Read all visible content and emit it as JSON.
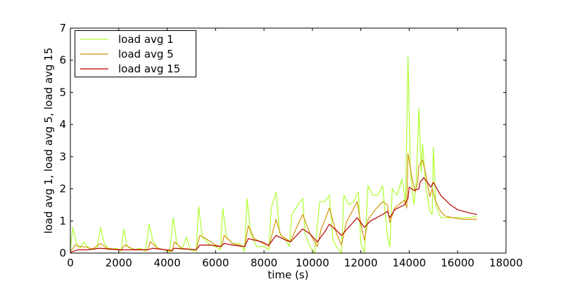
{
  "chart_data": {
    "type": "line",
    "title": "",
    "xlabel": "time (s)",
    "ylabel": "load avg 1, load avg 5, load avg 15",
    "xlim": [
      0,
      18000
    ],
    "ylim": [
      0,
      7
    ],
    "xticks": [
      "0",
      "2000",
      "4000",
      "6000",
      "8000",
      "10000",
      "12000",
      "14000",
      "16000",
      "18000"
    ],
    "yticks": [
      "0",
      "1",
      "2",
      "3",
      "4",
      "5",
      "6",
      "7"
    ],
    "grid": false,
    "legend_position": "top-left",
    "series": [
      {
        "name": "load avg 1",
        "color": "#adff2f",
        "points": [
          [
            0,
            0.1
          ],
          [
            100,
            0.8
          ],
          [
            250,
            0.3
          ],
          [
            400,
            0.15
          ],
          [
            550,
            0.35
          ],
          [
            700,
            0.2
          ],
          [
            900,
            0.1
          ],
          [
            1100,
            0.15
          ],
          [
            1250,
            0.8
          ],
          [
            1400,
            0.3
          ],
          [
            1600,
            0.1
          ],
          [
            1900,
            0.15
          ],
          [
            2100,
            0.05
          ],
          [
            2200,
            0.75
          ],
          [
            2350,
            0.2
          ],
          [
            2600,
            0.1
          ],
          [
            2900,
            0.15
          ],
          [
            3100,
            0.05
          ],
          [
            3250,
            0.9
          ],
          [
            3400,
            0.4
          ],
          [
            3600,
            0.15
          ],
          [
            3900,
            0.1
          ],
          [
            4100,
            0.02
          ],
          [
            4250,
            1.1
          ],
          [
            4400,
            0.3
          ],
          [
            4600,
            0.1
          ],
          [
            4800,
            0.5
          ],
          [
            4950,
            0.1
          ],
          [
            5200,
            0.05
          ],
          [
            5300,
            1.45
          ],
          [
            5450,
            0.5
          ],
          [
            5700,
            0.3
          ],
          [
            6000,
            0.2
          ],
          [
            6200,
            0.1
          ],
          [
            6300,
            1.4
          ],
          [
            6450,
            0.5
          ],
          [
            6700,
            0.3
          ],
          [
            7000,
            0.3
          ],
          [
            7200,
            0.05
          ],
          [
            7300,
            1.7
          ],
          [
            7450,
            0.6
          ],
          [
            7700,
            0.2
          ],
          [
            8000,
            0.2
          ],
          [
            8200,
            0.1
          ],
          [
            8300,
            1.4
          ],
          [
            8500,
            1.9
          ],
          [
            8650,
            0.6
          ],
          [
            8900,
            0.4
          ],
          [
            9050,
            0.2
          ],
          [
            9150,
            1.2
          ],
          [
            9400,
            1.5
          ],
          [
            9600,
            1.7
          ],
          [
            9700,
            0.6
          ],
          [
            9900,
            0.2
          ],
          [
            10100,
            0.0
          ],
          [
            10300,
            1.6
          ],
          [
            10500,
            1.6
          ],
          [
            10700,
            1.8
          ],
          [
            10850,
            0.4
          ],
          [
            11000,
            0.2
          ],
          [
            11200,
            0.0
          ],
          [
            11300,
            1.8
          ],
          [
            11500,
            1.5
          ],
          [
            11700,
            1.6
          ],
          [
            11900,
            1.9
          ],
          [
            12000,
            0.3
          ],
          [
            12150,
            0.0
          ],
          [
            12300,
            2.1
          ],
          [
            12500,
            1.8
          ],
          [
            12700,
            1.8
          ],
          [
            12900,
            2.1
          ],
          [
            13100,
            0.5
          ],
          [
            13200,
            0.2
          ],
          [
            13300,
            2.0
          ],
          [
            13500,
            1.8
          ],
          [
            13700,
            2.3
          ],
          [
            13850,
            1.6
          ],
          [
            13950,
            6.1
          ],
          [
            14050,
            2.5
          ],
          [
            14200,
            1.5
          ],
          [
            14300,
            2.3
          ],
          [
            14400,
            4.5
          ],
          [
            14500,
            2.5
          ],
          [
            14550,
            3.4
          ],
          [
            14700,
            2.0
          ],
          [
            14850,
            1.3
          ],
          [
            14950,
            1.2
          ],
          [
            15000,
            3.3
          ],
          [
            15100,
            1.5
          ],
          [
            15300,
            1.1
          ],
          [
            15600,
            1.1
          ],
          [
            15900,
            1.1
          ],
          [
            16200,
            1.1
          ],
          [
            16500,
            1.1
          ],
          [
            16800,
            1.15
          ]
        ]
      },
      {
        "name": "load avg 5",
        "color": "#d4950a",
        "points": [
          [
            0,
            0.05
          ],
          [
            200,
            0.25
          ],
          [
            400,
            0.2
          ],
          [
            600,
            0.2
          ],
          [
            900,
            0.12
          ],
          [
            1250,
            0.3
          ],
          [
            1500,
            0.15
          ],
          [
            2100,
            0.1
          ],
          [
            2250,
            0.25
          ],
          [
            2600,
            0.12
          ],
          [
            3200,
            0.1
          ],
          [
            3300,
            0.35
          ],
          [
            3600,
            0.15
          ],
          [
            4200,
            0.05
          ],
          [
            4300,
            0.35
          ],
          [
            4600,
            0.15
          ],
          [
            5200,
            0.1
          ],
          [
            5350,
            0.55
          ],
          [
            5600,
            0.45
          ],
          [
            6000,
            0.25
          ],
          [
            6250,
            0.2
          ],
          [
            6350,
            0.55
          ],
          [
            6700,
            0.3
          ],
          [
            7200,
            0.2
          ],
          [
            7350,
            0.85
          ],
          [
            7600,
            0.45
          ],
          [
            8200,
            0.2
          ],
          [
            8500,
            1.05
          ],
          [
            8700,
            0.55
          ],
          [
            9100,
            0.35
          ],
          [
            9200,
            0.55
          ],
          [
            9600,
            1.2
          ],
          [
            9900,
            0.6
          ],
          [
            10200,
            0.2
          ],
          [
            10350,
            0.7
          ],
          [
            10700,
            1.4
          ],
          [
            11000,
            0.6
          ],
          [
            11200,
            0.25
          ],
          [
            11400,
            0.95
          ],
          [
            11850,
            1.6
          ],
          [
            12000,
            0.9
          ],
          [
            12150,
            0.4
          ],
          [
            12300,
            1.05
          ],
          [
            12600,
            1.35
          ],
          [
            12900,
            1.6
          ],
          [
            13100,
            1.5
          ],
          [
            13200,
            0.95
          ],
          [
            13400,
            1.4
          ],
          [
            13800,
            1.65
          ],
          [
            13900,
            1.4
          ],
          [
            13950,
            3.1
          ],
          [
            14100,
            2.4
          ],
          [
            14250,
            1.9
          ],
          [
            14350,
            2.2
          ],
          [
            14400,
            2.7
          ],
          [
            14550,
            2.9
          ],
          [
            14700,
            2.4
          ],
          [
            14850,
            1.75
          ],
          [
            14950,
            2.0
          ],
          [
            15100,
            1.6
          ],
          [
            15300,
            1.3
          ],
          [
            15500,
            1.15
          ],
          [
            15800,
            1.1
          ],
          [
            16200,
            1.05
          ],
          [
            16800,
            1.05
          ]
        ]
      },
      {
        "name": "load avg 15",
        "color": "#b50000",
        "points": [
          [
            0,
            0.02
          ],
          [
            300,
            0.1
          ],
          [
            700,
            0.1
          ],
          [
            1200,
            0.15
          ],
          [
            2000,
            0.1
          ],
          [
            2300,
            0.1
          ],
          [
            3200,
            0.1
          ],
          [
            3400,
            0.15
          ],
          [
            4200,
            0.08
          ],
          [
            4300,
            0.15
          ],
          [
            5200,
            0.1
          ],
          [
            5350,
            0.25
          ],
          [
            5800,
            0.25
          ],
          [
            6200,
            0.2
          ],
          [
            6350,
            0.3
          ],
          [
            6700,
            0.25
          ],
          [
            7200,
            0.2
          ],
          [
            7350,
            0.45
          ],
          [
            7900,
            0.35
          ],
          [
            8200,
            0.25
          ],
          [
            8500,
            0.55
          ],
          [
            8900,
            0.4
          ],
          [
            9100,
            0.35
          ],
          [
            9600,
            0.75
          ],
          [
            9900,
            0.6
          ],
          [
            10200,
            0.35
          ],
          [
            10500,
            0.65
          ],
          [
            10700,
            0.9
          ],
          [
            11000,
            0.7
          ],
          [
            11200,
            0.55
          ],
          [
            11500,
            0.8
          ],
          [
            11850,
            1.1
          ],
          [
            12150,
            0.8
          ],
          [
            12400,
            1.0
          ],
          [
            12900,
            1.2
          ],
          [
            13100,
            1.3
          ],
          [
            13200,
            1.1
          ],
          [
            13400,
            1.35
          ],
          [
            13800,
            1.5
          ],
          [
            13950,
            1.7
          ],
          [
            14000,
            2.05
          ],
          [
            14200,
            1.95
          ],
          [
            14400,
            2.0
          ],
          [
            14450,
            2.2
          ],
          [
            14600,
            2.35
          ],
          [
            14900,
            2.05
          ],
          [
            15000,
            2.2
          ],
          [
            15300,
            1.8
          ],
          [
            15700,
            1.5
          ],
          [
            16000,
            1.35
          ],
          [
            16500,
            1.25
          ],
          [
            16800,
            1.2
          ]
        ]
      }
    ]
  }
}
